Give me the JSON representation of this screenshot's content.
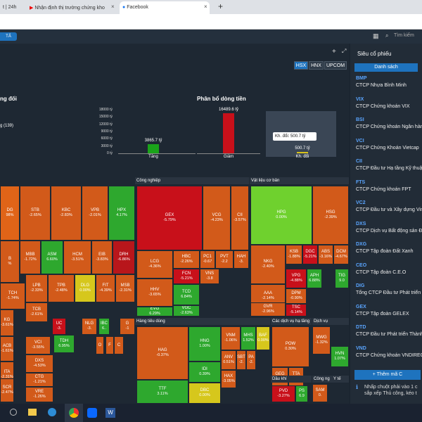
{
  "browser": {
    "tabs": [
      {
        "label": "t | 24h"
      },
      {
        "label": "Nhận định thị trường chứng kho"
      },
      {
        "label": "Facebook"
      }
    ],
    "new_tab": "+"
  },
  "app": {
    "top_chip": "TẢ",
    "search_placeholder": "Tìm kiếm",
    "exchanges": [
      "HSX",
      "HNX",
      "UPCOM"
    ],
    "left_chart_title": "ng đối",
    "left_chart_note": "g (139)"
  },
  "chart_data": {
    "type": "bar",
    "title": "Phân bổ dòng tiền",
    "categories": [
      "Tăng",
      "Giảm",
      "Kh. đổi"
    ],
    "values": [
      3865.7,
      16489.6,
      500.7
    ],
    "value_labels": [
      "3865.7 tỷ",
      "16489.6 tỷ",
      "500.7 tỷ"
    ],
    "colors": [
      "#1aa31a",
      "#c8101a",
      "#d8c21a"
    ],
    "ylim": [
      0,
      18000
    ],
    "yticks": [
      "18000 tỷ",
      "15000 tỷ",
      "12000 tỷ",
      "9000 tỷ",
      "6000 tỷ",
      "3000 tỷ",
      "0 tỷ"
    ],
    "tooltip": "Kh. đổi: 500.7 tỷ"
  },
  "sectors": {
    "cong_nghiep": "Công nghiệp",
    "vat_lieu": "Vật liệu cơ bản",
    "hang_tieu_dung": "Hàng tiêu dùng",
    "cac_dich_vu": "Các dịch vụ hạ tầng",
    "dich_vu": "Dịch vụ",
    "dau_khi": "Dầu khí",
    "cong_nghe": "Công ng",
    "y_te": "Y tế"
  },
  "cells": [
    {
      "s": "DG",
      "v": "98%"
    },
    {
      "s": "STB",
      "v": "-2.65%"
    },
    {
      "s": "KBC",
      "v": "-2.83%"
    },
    {
      "s": "VPB",
      "v": "-2.01%"
    },
    {
      "s": "HPX",
      "v": "4.17%"
    },
    {
      "s": "B",
      "v": "%"
    },
    {
      "s": "MBB",
      "v": "-1.72%"
    },
    {
      "s": "ASM",
      "v": "6.60%"
    },
    {
      "s": "HCM",
      "v": "-3.51%"
    },
    {
      "s": "EIB",
      "v": "-3.83%"
    },
    {
      "s": "DRH",
      "v": "-6.86%"
    },
    {
      "s": "TCH",
      "v": "-1.74%"
    },
    {
      "s": "LPB",
      "v": "-2.33%"
    },
    {
      "s": "TPB",
      "v": "-2.48%"
    },
    {
      "s": "DLG",
      "v": "0.00%"
    },
    {
      "s": "FIT",
      "v": "-4.39%"
    },
    {
      "s": "MSB",
      "v": "-2.31%"
    },
    {
      "s": "KG",
      "v": "-3.61%"
    },
    {
      "s": "TCB",
      "v": "-2.61%"
    },
    {
      "s": "UC",
      "v": "-3."
    },
    {
      "s": "NLG",
      "v": "-3."
    },
    {
      "s": "IBC",
      "v": "6.."
    },
    {
      "s": "G",
      "v": "-1"
    },
    {
      "s": "ACB",
      "v": "-1.61%"
    },
    {
      "s": "VCI",
      "v": "-3.55%"
    },
    {
      "s": "TDH",
      "v": "6.95%"
    },
    {
      "s": "O",
      "v": ""
    },
    {
      "s": "F",
      "v": ""
    },
    {
      "s": "C",
      "v": ""
    },
    {
      "s": "ITA",
      "v": "-2.31%"
    },
    {
      "s": "DXS",
      "v": "-4.53%"
    },
    {
      "s": "SCR",
      "v": "-2.47%"
    },
    {
      "s": "CTG",
      "v": "-1.21%"
    },
    {
      "s": "VRE",
      "v": "-1.26%"
    },
    {
      "s": "GEX",
      "v": "-5.79%"
    },
    {
      "s": "VCG",
      "v": "-4.23%"
    },
    {
      "s": "CII",
      "v": "-3.57%"
    },
    {
      "s": "LCG",
      "v": "-4.36%"
    },
    {
      "s": "HBC",
      "v": "-2.26%"
    },
    {
      "s": "PC1",
      "v": "-0.67"
    },
    {
      "s": "PVT",
      "v": "-2.2"
    },
    {
      "s": "HAH",
      "v": "-3."
    },
    {
      "s": "FCN",
      "v": "-5.21%"
    },
    {
      "s": "VNS",
      "v": "-3.8"
    },
    {
      "s": "HHV",
      "v": "-3.65%"
    },
    {
      "s": "TCD",
      "v": "6.84%"
    },
    {
      "s": "EVG",
      "v": "6.29%"
    },
    {
      "s": "VGC",
      "v": "-2.63%"
    },
    {
      "s": "HPG",
      "v": "0.00%"
    },
    {
      "s": "HSG",
      "v": "-2.39%"
    },
    {
      "s": "NKG",
      "v": "-2.40%"
    },
    {
      "s": "KSB",
      "v": "-1.88%"
    },
    {
      "s": "DGC",
      "v": "-5.21%"
    },
    {
      "s": "ABS",
      "v": "-3.16%"
    },
    {
      "s": "DCM",
      "v": "-4.67%"
    },
    {
      "s": "AAA",
      "v": "-2.14%"
    },
    {
      "s": "VPG",
      "v": "-4.88%"
    },
    {
      "s": "APH",
      "v": "6.88%"
    },
    {
      "s": "TIG",
      "v": "9.0"
    },
    {
      "s": "DPM",
      "v": "-0.90%"
    },
    {
      "s": "GVR",
      "v": "-2.96%"
    },
    {
      "s": "TSC",
      "v": "-5.14%"
    },
    {
      "s": "HAG",
      "v": "-0.37%"
    },
    {
      "s": "HNG",
      "v": "1.00%"
    },
    {
      "s": "VNM",
      "v": "-1.06%"
    },
    {
      "s": "MHS",
      "v": "1.52%"
    },
    {
      "s": "BAF",
      "v": "0.00%"
    },
    {
      "s": "IDI",
      "v": "0.39%"
    },
    {
      "s": "ANV",
      "v": "0.51%"
    },
    {
      "s": "SBT",
      "v": "-2."
    },
    {
      "s": "PA",
      "v": "-2."
    },
    {
      "s": "TTF",
      "v": "3.11%"
    },
    {
      "s": "DBC",
      "v": "0.00%"
    },
    {
      "s": "HAX",
      "v": "-3.05%"
    },
    {
      "s": "POW",
      "v": "0.30%"
    },
    {
      "s": "MWG",
      "v": "-1.32%"
    },
    {
      "s": "GEG",
      "v": "-1.4"
    },
    {
      "s": "TTA",
      "v": "-5."
    },
    {
      "s": "HVN",
      "v": "1.07%"
    },
    {
      "s": "PVD",
      "v": "-3.27%"
    },
    {
      "s": "PS",
      "v": "6.9"
    },
    {
      "s": "SAM",
      "v": "0."
    }
  ],
  "right_panel": {
    "title": "Siêu cổ phiếu",
    "tab": "Danh sách",
    "items": [
      {
        "sym": "BMP",
        "name": "CTCP Nhựa Bình Minh"
      },
      {
        "sym": "VIX",
        "name": "CTCP Chứng khoán VIX"
      },
      {
        "sym": "BSI",
        "name": "CTCP Chứng khoán Ngân hàng"
      },
      {
        "sym": "VCI",
        "name": "CTCP Chứng Khoán Vietcap"
      },
      {
        "sym": "CII",
        "name": "CTCP Đầu tư Hạ tầng Kỹ thuật"
      },
      {
        "sym": "FTS",
        "name": "CTCP Chứng khoán FPT"
      },
      {
        "sym": "VC2",
        "name": "CTCP Đầu tư và Xây dựng Vina"
      },
      {
        "sym": "DXS",
        "name": "CTCP Dịch vụ Bất động sản Đ"
      },
      {
        "sym": "DXG",
        "name": "CTCP Tập đoàn Đất Xanh"
      },
      {
        "sym": "CEO",
        "name": "CTCP Tập đoàn C.E.O"
      },
      {
        "sym": "DIG",
        "name": "Tổng CTCP Đầu tư Phát triển"
      },
      {
        "sym": "GEX",
        "name": "CTCP Tập đoàn GELEX"
      },
      {
        "sym": "DTD",
        "name": "CTCP Đầu tư Phát triển Thành"
      },
      {
        "sym": "VND",
        "name": "CTCP Chứng khoán VNDIREC"
      }
    ],
    "add_button": "+ Thêm mã C",
    "hint": "Nhấp chuột phải vào 1 c sắp xếp Thủ công, kéo t"
  },
  "taskbar": {
    "apps": [
      "file-explorer-icon",
      "edge-icon",
      "chrome-icon",
      "zalo-icon",
      "word-icon"
    ]
  }
}
